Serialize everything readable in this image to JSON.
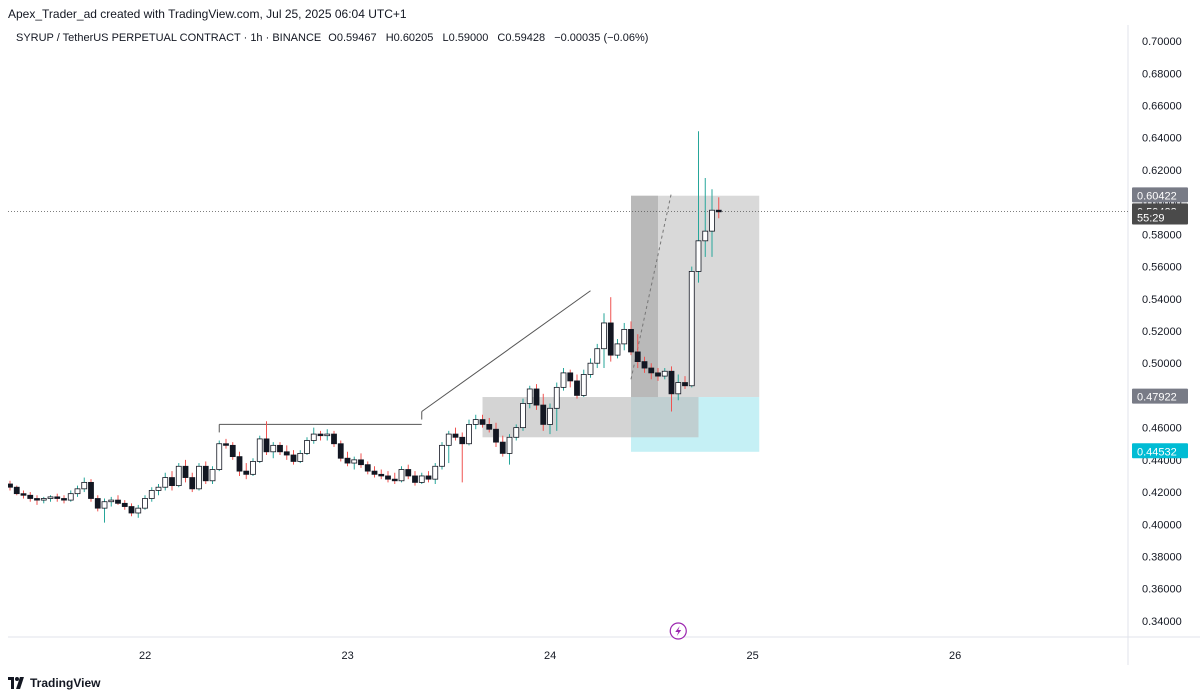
{
  "header": {
    "attribution": "Apex_Trader_ad created with TradingView.com, Jul 25, 2025 06:04 UTC+1"
  },
  "legend": {
    "symbol": "SYRUP / TetherUS PERPETUAL CONTRACT · 1h · BINANCE",
    "o_label": "O",
    "o_value": "0.59467",
    "h_label": "H",
    "h_value": "0.60205",
    "l_label": "L",
    "l_value": "0.59000",
    "c_label": "C",
    "c_value": "0.59428",
    "change": "−0.00035 (−0.06%)"
  },
  "footer": {
    "brand": "TradingView"
  },
  "colors": {
    "up": "#26a69a",
    "down": "#ef5350",
    "candle_body_up": "#ffffff",
    "candle_body_down": "#131722",
    "zone_grey": "#9e9e9e",
    "target_cyan": "#b2ebf2",
    "label_grey": "#787b86",
    "label_dark": "#4a4a4a",
    "label_cyan": "#00bcd4",
    "event_purple": "#9c27b0"
  },
  "chart_data": {
    "type": "candlestick",
    "ylim": [
      0.33,
      0.71
    ],
    "y_ticks": [
      "0.70000",
      "0.68000",
      "0.66000",
      "0.64000",
      "0.62000",
      "0.60000",
      "0.58000",
      "0.56000",
      "0.54000",
      "0.52000",
      "0.50000",
      "0.48000",
      "0.46000",
      "0.44000",
      "0.42000",
      "0.40000",
      "0.38000",
      "0.36000",
      "0.34000"
    ],
    "x_ticks": [
      "22",
      "23",
      "24",
      "25",
      "26"
    ],
    "price_labels": [
      {
        "text": "0.60422",
        "value": 0.60422,
        "style": "grey"
      },
      {
        "text": "0.59428",
        "value": 0.59428,
        "style": "dark"
      },
      {
        "text": "55:29",
        "value": 0.5905,
        "style": "dark"
      },
      {
        "text": "0.47922",
        "value": 0.47922,
        "style": "grey"
      },
      {
        "text": "0.44532",
        "value": 0.44532,
        "style": "cyan"
      }
    ],
    "current_price": 0.59428,
    "candles": [
      [
        0.425,
        0.427,
        0.421,
        0.423
      ],
      [
        0.423,
        0.424,
        0.418,
        0.419
      ],
      [
        0.419,
        0.421,
        0.416,
        0.418
      ],
      [
        0.418,
        0.42,
        0.414,
        0.416
      ],
      [
        0.416,
        0.418,
        0.412,
        0.415
      ],
      [
        0.415,
        0.417,
        0.413,
        0.416
      ],
      [
        0.416,
        0.418,
        0.414,
        0.417
      ],
      [
        0.417,
        0.419,
        0.414,
        0.416
      ],
      [
        0.416,
        0.418,
        0.413,
        0.415
      ],
      [
        0.415,
        0.421,
        0.414,
        0.419
      ],
      [
        0.419,
        0.424,
        0.417,
        0.422
      ],
      [
        0.422,
        0.429,
        0.42,
        0.426
      ],
      [
        0.426,
        0.428,
        0.414,
        0.416
      ],
      [
        0.416,
        0.418,
        0.408,
        0.41
      ],
      [
        0.41,
        0.416,
        0.401,
        0.414
      ],
      [
        0.414,
        0.417,
        0.411,
        0.415
      ],
      [
        0.415,
        0.418,
        0.412,
        0.413
      ],
      [
        0.413,
        0.415,
        0.409,
        0.411
      ],
      [
        0.411,
        0.413,
        0.405,
        0.407
      ],
      [
        0.407,
        0.412,
        0.404,
        0.41
      ],
      [
        0.41,
        0.418,
        0.409,
        0.416
      ],
      [
        0.416,
        0.423,
        0.414,
        0.421
      ],
      [
        0.421,
        0.425,
        0.418,
        0.423
      ],
      [
        0.423,
        0.432,
        0.421,
        0.429
      ],
      [
        0.429,
        0.433,
        0.421,
        0.424
      ],
      [
        0.424,
        0.438,
        0.423,
        0.436
      ],
      [
        0.436,
        0.44,
        0.426,
        0.429
      ],
      [
        0.429,
        0.432,
        0.42,
        0.422
      ],
      [
        0.422,
        0.438,
        0.421,
        0.436
      ],
      [
        0.436,
        0.439,
        0.425,
        0.427
      ],
      [
        0.427,
        0.436,
        0.425,
        0.434
      ],
      [
        0.434,
        0.452,
        0.433,
        0.45
      ],
      [
        0.45,
        0.453,
        0.447,
        0.449
      ],
      [
        0.449,
        0.451,
        0.44,
        0.442
      ],
      [
        0.442,
        0.445,
        0.43,
        0.433
      ],
      [
        0.433,
        0.438,
        0.428,
        0.431
      ],
      [
        0.431,
        0.441,
        0.43,
        0.439
      ],
      [
        0.439,
        0.455,
        0.438,
        0.453
      ],
      [
        0.453,
        0.464,
        0.443,
        0.445
      ],
      [
        0.445,
        0.451,
        0.441,
        0.449
      ],
      [
        0.449,
        0.451,
        0.443,
        0.445
      ],
      [
        0.445,
        0.449,
        0.44,
        0.443
      ],
      [
        0.443,
        0.446,
        0.437,
        0.439
      ],
      [
        0.439,
        0.446,
        0.438,
        0.444
      ],
      [
        0.444,
        0.454,
        0.443,
        0.452
      ],
      [
        0.452,
        0.46,
        0.45,
        0.456
      ],
      [
        0.456,
        0.458,
        0.452,
        0.455
      ],
      [
        0.455,
        0.459,
        0.452,
        0.456
      ],
      [
        0.456,
        0.458,
        0.448,
        0.45
      ],
      [
        0.45,
        0.452,
        0.439,
        0.441
      ],
      [
        0.441,
        0.445,
        0.436,
        0.438
      ],
      [
        0.438,
        0.442,
        0.434,
        0.44
      ],
      [
        0.44,
        0.444,
        0.435,
        0.437
      ],
      [
        0.437,
        0.439,
        0.431,
        0.433
      ],
      [
        0.433,
        0.436,
        0.429,
        0.431
      ],
      [
        0.431,
        0.434,
        0.428,
        0.43
      ],
      [
        0.43,
        0.433,
        0.426,
        0.428
      ],
      [
        0.428,
        0.432,
        0.425,
        0.427
      ],
      [
        0.427,
        0.436,
        0.426,
        0.434
      ],
      [
        0.434,
        0.437,
        0.428,
        0.43
      ],
      [
        0.43,
        0.433,
        0.424,
        0.426
      ],
      [
        0.426,
        0.432,
        0.425,
        0.43
      ],
      [
        0.43,
        0.433,
        0.426,
        0.428
      ],
      [
        0.428,
        0.438,
        0.425,
        0.436
      ],
      [
        0.436,
        0.451,
        0.434,
        0.449
      ],
      [
        0.449,
        0.458,
        0.438,
        0.456
      ],
      [
        0.456,
        0.46,
        0.452,
        0.454
      ],
      [
        0.454,
        0.457,
        0.426,
        0.45
      ],
      [
        0.45,
        0.465,
        0.449,
        0.462
      ],
      [
        0.462,
        0.468,
        0.459,
        0.465
      ],
      [
        0.465,
        0.468,
        0.46,
        0.462
      ],
      [
        0.462,
        0.466,
        0.457,
        0.459
      ],
      [
        0.459,
        0.463,
        0.448,
        0.451
      ],
      [
        0.451,
        0.455,
        0.442,
        0.444
      ],
      [
        0.444,
        0.456,
        0.437,
        0.454
      ],
      [
        0.454,
        0.462,
        0.452,
        0.46
      ],
      [
        0.46,
        0.478,
        0.458,
        0.475
      ],
      [
        0.475,
        0.486,
        0.472,
        0.484
      ],
      [
        0.484,
        0.487,
        0.471,
        0.474
      ],
      [
        0.474,
        0.481,
        0.458,
        0.462
      ],
      [
        0.462,
        0.475,
        0.456,
        0.472
      ],
      [
        0.472,
        0.488,
        0.458,
        0.485
      ],
      [
        0.485,
        0.497,
        0.483,
        0.494
      ],
      [
        0.494,
        0.496,
        0.485,
        0.489
      ],
      [
        0.489,
        0.493,
        0.478,
        0.48
      ],
      [
        0.48,
        0.496,
        0.479,
        0.493
      ],
      [
        0.493,
        0.503,
        0.491,
        0.5
      ],
      [
        0.5,
        0.512,
        0.497,
        0.509
      ],
      [
        0.509,
        0.531,
        0.497,
        0.525
      ],
      [
        0.525,
        0.541,
        0.501,
        0.505
      ],
      [
        0.505,
        0.515,
        0.503,
        0.512
      ],
      [
        0.512,
        0.525,
        0.508,
        0.521
      ],
      [
        0.521,
        0.526,
        0.505,
        0.507
      ],
      [
        0.507,
        0.518,
        0.497,
        0.501
      ],
      [
        0.501,
        0.504,
        0.494,
        0.497
      ],
      [
        0.497,
        0.5,
        0.49,
        0.494
      ],
      [
        0.494,
        0.497,
        0.489,
        0.492
      ],
      [
        0.492,
        0.497,
        0.49,
        0.495
      ],
      [
        0.495,
        0.498,
        0.47,
        0.481
      ],
      [
        0.481,
        0.493,
        0.477,
        0.488
      ],
      [
        0.488,
        0.492,
        0.484,
        0.486
      ],
      [
        0.486,
        0.56,
        0.485,
        0.557
      ],
      [
        0.557,
        0.644,
        0.55,
        0.576
      ],
      [
        0.576,
        0.615,
        0.566,
        0.582
      ],
      [
        0.582,
        0.608,
        0.566,
        0.595
      ],
      [
        0.595,
        0.603,
        0.59,
        0.594
      ]
    ],
    "annotations": {
      "horizontal_line": {
        "x0": 31,
        "x1": 61,
        "y": 0.462
      },
      "rising_line": {
        "x0": 61,
        "x1": 86,
        "y0": 0.47,
        "y1": 0.545
      },
      "supply_zone": {
        "x0": 70,
        "x1": 102,
        "y_top": 0.479,
        "y_bottom": 0.454
      },
      "stop_zone": {
        "x0": 92,
        "x1": 111,
        "y_top": 0.604,
        "y_bottom": 0.479
      },
      "target_zone": {
        "x0": 92,
        "x1": 111,
        "y_top": 0.479,
        "y_bottom": 0.445
      },
      "dashed_path": {
        "x0": 92,
        "x1": 98,
        "y0": 0.49,
        "y1": 0.606
      },
      "event_marker_x": 99
    }
  }
}
